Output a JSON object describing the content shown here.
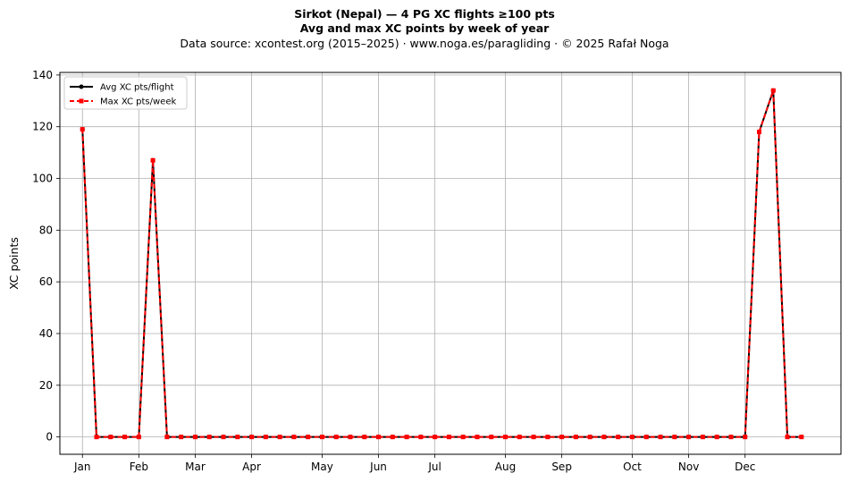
{
  "chart_data": {
    "type": "line",
    "title": "Sirkot (Nepal)  —  4 PG XC flights ≥100 pts",
    "subtitle": "Avg and max XC points by week of year",
    "source_line": "Data source: xcontest.org (2015–2025)  ·  www.noga.es/paragliding  ·  © 2025 Rafał Noga",
    "xlabel": "",
    "ylabel": "XC points",
    "ylim": [
      -6.7,
      141
    ],
    "xlim": [
      -1.6,
      53.8
    ],
    "grid": true,
    "legend_position": "top-left",
    "x_ticks": [
      {
        "label": "Jan",
        "x": 0
      },
      {
        "label": "Feb",
        "x": 4
      },
      {
        "label": "Mar",
        "x": 8
      },
      {
        "label": "Apr",
        "x": 12
      },
      {
        "label": "May",
        "x": 17
      },
      {
        "label": "Jun",
        "x": 21
      },
      {
        "label": "Jul",
        "x": 25
      },
      {
        "label": "Aug",
        "x": 30
      },
      {
        "label": "Sep",
        "x": 34
      },
      {
        "label": "Oct",
        "x": 39
      },
      {
        "label": "Nov",
        "x": 43
      },
      {
        "label": "Dec",
        "x": 47
      }
    ],
    "y_ticks": [
      0,
      20,
      40,
      60,
      80,
      100,
      120,
      140
    ],
    "weeks": [
      0,
      1,
      2,
      3,
      4,
      5,
      6,
      7,
      8,
      9,
      10,
      11,
      12,
      13,
      14,
      15,
      16,
      17,
      18,
      19,
      20,
      21,
      22,
      23,
      24,
      25,
      26,
      27,
      28,
      29,
      30,
      31,
      32,
      33,
      34,
      35,
      36,
      37,
      38,
      39,
      40,
      41,
      42,
      43,
      44,
      45,
      46,
      47,
      48,
      49,
      50,
      51
    ],
    "series": [
      {
        "name": "Avg XC pts/flight",
        "color": "#000000",
        "marker": "circle",
        "linestyle": "solid",
        "values": [
          119,
          0,
          0,
          0,
          0,
          107,
          0,
          0,
          0,
          0,
          0,
          0,
          0,
          0,
          0,
          0,
          0,
          0,
          0,
          0,
          0,
          0,
          0,
          0,
          0,
          0,
          0,
          0,
          0,
          0,
          0,
          0,
          0,
          0,
          0,
          0,
          0,
          0,
          0,
          0,
          0,
          0,
          0,
          0,
          0,
          0,
          0,
          0,
          118,
          134,
          0,
          0
        ]
      },
      {
        "name": "Max XC pts/week",
        "color": "#ff0000",
        "marker": "square",
        "linestyle": "dashed",
        "values": [
          119,
          0,
          0,
          0,
          0,
          107,
          0,
          0,
          0,
          0,
          0,
          0,
          0,
          0,
          0,
          0,
          0,
          0,
          0,
          0,
          0,
          0,
          0,
          0,
          0,
          0,
          0,
          0,
          0,
          0,
          0,
          0,
          0,
          0,
          0,
          0,
          0,
          0,
          0,
          0,
          0,
          0,
          0,
          0,
          0,
          0,
          0,
          0,
          118,
          134,
          0,
          0
        ]
      }
    ]
  }
}
